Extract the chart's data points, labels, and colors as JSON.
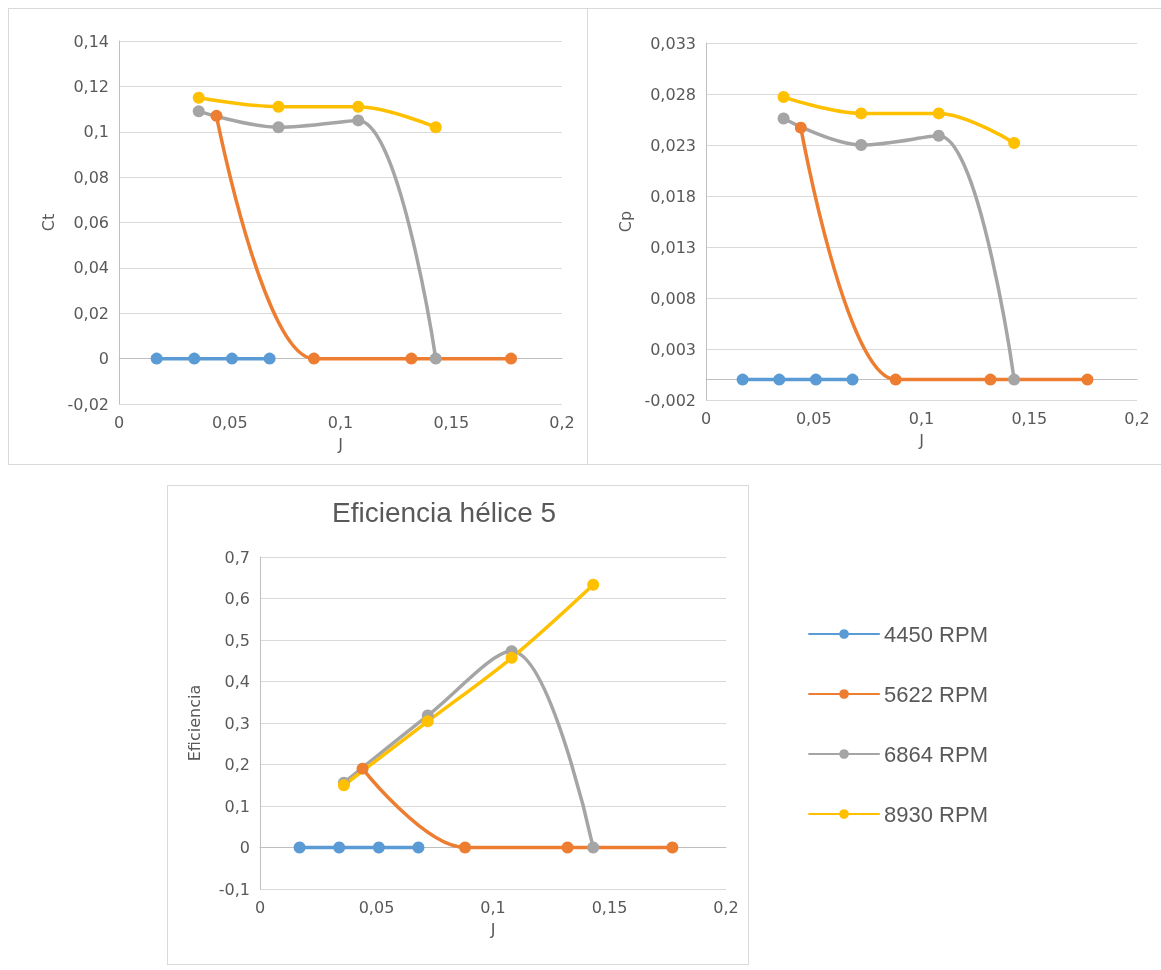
{
  "chart_data": [
    {
      "type": "line",
      "xlabel": "J",
      "ylabel": "Ct",
      "xlim": [
        0,
        0.2
      ],
      "xticks": [
        {
          "value": 0,
          "label": "0"
        },
        {
          "value": 0.05,
          "label": "0,05"
        },
        {
          "value": 0.1,
          "label": "0,1"
        },
        {
          "value": 0.15,
          "label": "0,15"
        },
        {
          "value": 0.2,
          "label": "0,2"
        }
      ],
      "ylim": [
        -0.02,
        0.14
      ],
      "yticks": [
        {
          "value": -0.02,
          "label": "-0,02"
        },
        0,
        {
          "value": 0.02,
          "label": "0,02"
        },
        {
          "value": 0.04,
          "label": "0,04"
        },
        {
          "value": 0.06,
          "label": "0,06"
        },
        {
          "value": 0.08,
          "label": "0,08"
        },
        {
          "value": 0.1,
          "label": "0,1"
        },
        {
          "value": 0.12,
          "label": "0,12"
        },
        {
          "value": 0.14,
          "label": "0,14"
        }
      ],
      "grid": "y",
      "legend": false,
      "marker": "circle",
      "line_style": "solid",
      "series": [
        {
          "color": "#5b9bd5",
          "x": [
            0.017,
            0.034,
            0.051,
            0.068
          ],
          "values": [
            0,
            0,
            0,
            0
          ]
        },
        {
          "color": "#ed7d31",
          "x": [
            0.044,
            0.088,
            0.132,
            0.177
          ],
          "values": [
            0.107,
            0,
            0,
            0
          ]
        },
        {
          "color": "#a5a5a5",
          "x": [
            0.036,
            0.072,
            0.108,
            0.143
          ],
          "values": [
            0.109,
            0.102,
            0.105,
            0
          ]
        },
        {
          "color": "#ffc000",
          "x": [
            0.036,
            0.072,
            0.108,
            0.143
          ],
          "values": [
            0.115,
            0.111,
            0.111,
            0.102
          ]
        }
      ]
    },
    {
      "type": "line",
      "xlabel": "J",
      "ylabel": "Cp",
      "xlim": [
        0,
        0.2
      ],
      "xticks": [
        {
          "value": 0,
          "label": "0"
        },
        {
          "value": 0.05,
          "label": "0,05"
        },
        {
          "value": 0.1,
          "label": "0,1"
        },
        {
          "value": 0.15,
          "label": "0,15"
        },
        {
          "value": 0.2,
          "label": "0,2"
        }
      ],
      "ylim": [
        -0.002,
        0.033
      ],
      "yticks": [
        {
          "value": -0.002,
          "label": "-0,002"
        },
        {
          "value": 0.003,
          "label": "0,003"
        },
        {
          "value": 0.008,
          "label": "0,008"
        },
        {
          "value": 0.013,
          "label": "0,013"
        },
        {
          "value": 0.018,
          "label": "0,018"
        },
        {
          "value": 0.023,
          "label": "0,023"
        },
        {
          "value": 0.028,
          "label": "0,028"
        },
        {
          "value": 0.033,
          "label": "0,033"
        }
      ],
      "grid": "y",
      "legend": false,
      "marker": "circle",
      "line_style": "solid",
      "series": [
        {
          "color": "#5b9bd5",
          "x": [
            0.017,
            0.034,
            0.051,
            0.068
          ],
          "values": [
            0,
            0,
            0,
            0
          ]
        },
        {
          "color": "#ed7d31",
          "x": [
            0.044,
            0.088,
            0.132,
            0.177
          ],
          "values": [
            0.0247,
            0,
            0,
            0
          ]
        },
        {
          "color": "#a5a5a5",
          "x": [
            0.036,
            0.072,
            0.108,
            0.143
          ],
          "values": [
            0.0256,
            0.023,
            0.0239,
            0
          ]
        },
        {
          "color": "#ffc000",
          "x": [
            0.036,
            0.072,
            0.108,
            0.143
          ],
          "values": [
            0.0277,
            0.0261,
            0.0261,
            0.0232
          ]
        }
      ]
    },
    {
      "type": "line",
      "title": "Eficiencia hélice 5",
      "xlabel": "J",
      "ylabel": "Eficiencia",
      "xlim": [
        0,
        0.2
      ],
      "xticks": [
        {
          "value": 0,
          "label": "0"
        },
        {
          "value": 0.05,
          "label": "0,05"
        },
        {
          "value": 0.1,
          "label": "0,1"
        },
        {
          "value": 0.15,
          "label": "0,15"
        },
        {
          "value": 0.2,
          "label": "0,2"
        }
      ],
      "ylim": [
        -0.1,
        0.7
      ],
      "yticks": [
        {
          "value": -0.1,
          "label": "-0,1"
        },
        0,
        {
          "value": 0.1,
          "label": "0,1"
        },
        {
          "value": 0.2,
          "label": "0,2"
        },
        {
          "value": 0.3,
          "label": "0,3"
        },
        {
          "value": 0.4,
          "label": "0,4"
        },
        {
          "value": 0.5,
          "label": "0,5"
        },
        {
          "value": 0.6,
          "label": "0,6"
        },
        {
          "value": 0.7,
          "label": "0,7"
        }
      ],
      "grid": "y",
      "legend": "right",
      "marker": "circle",
      "line_style": "solid",
      "series": [
        {
          "name": "4450 RPM",
          "color": "#5b9bd5",
          "x": [
            0.017,
            0.034,
            0.051,
            0.068
          ],
          "values": [
            0,
            0,
            0,
            0
          ]
        },
        {
          "name": "5622 RPM",
          "color": "#ed7d31",
          "x": [
            0.044,
            0.088,
            0.132,
            0.177
          ],
          "values": [
            0.19,
            0,
            0,
            0
          ]
        },
        {
          "name": "6864 RPM",
          "color": "#a5a5a5",
          "x": [
            0.036,
            0.072,
            0.108,
            0.143
          ],
          "values": [
            0.156,
            0.318,
            0.473,
            0
          ]
        },
        {
          "name": "8930 RPM",
          "color": "#ffc000",
          "x": [
            0.036,
            0.072,
            0.108,
            0.143
          ],
          "values": [
            0.15,
            0.304,
            0.457,
            0.633
          ]
        }
      ]
    }
  ]
}
